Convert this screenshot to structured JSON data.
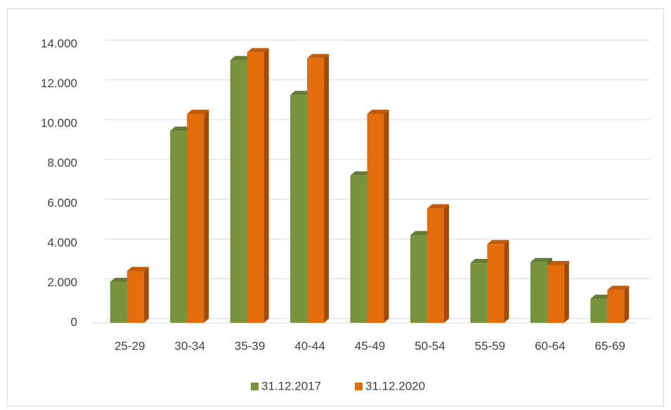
{
  "chart_data": {
    "type": "bar",
    "categories": [
      "25-29",
      "30-34",
      "35-39",
      "40-44",
      "45-49",
      "50-54",
      "55-59",
      "60-64",
      "65-69"
    ],
    "series": [
      {
        "name": "31.12.2017",
        "color": "#77933c",
        "values": [
          2050,
          9650,
          13200,
          11450,
          7400,
          4400,
          3000,
          3050,
          1200
        ]
      },
      {
        "name": "31.12.2020",
        "color": "#e46c0a",
        "values": [
          2600,
          10500,
          13600,
          13300,
          10500,
          5750,
          3950,
          2900,
          1650
        ]
      }
    ],
    "ylim": [
      0,
      14000
    ],
    "yticks": [
      0,
      {
        "value": 2000,
        "label": "2.000"
      },
      {
        "value": 4000,
        "label": "4.000"
      },
      {
        "value": 6000,
        "label": "6.000"
      },
      {
        "value": 8000,
        "label": "8.000"
      },
      {
        "value": 10000,
        "label": "10.000"
      },
      {
        "value": 12000,
        "label": "12.000"
      },
      {
        "value": 14000,
        "label": "14.000"
      }
    ],
    "grid": true,
    "legend": "bottom"
  }
}
